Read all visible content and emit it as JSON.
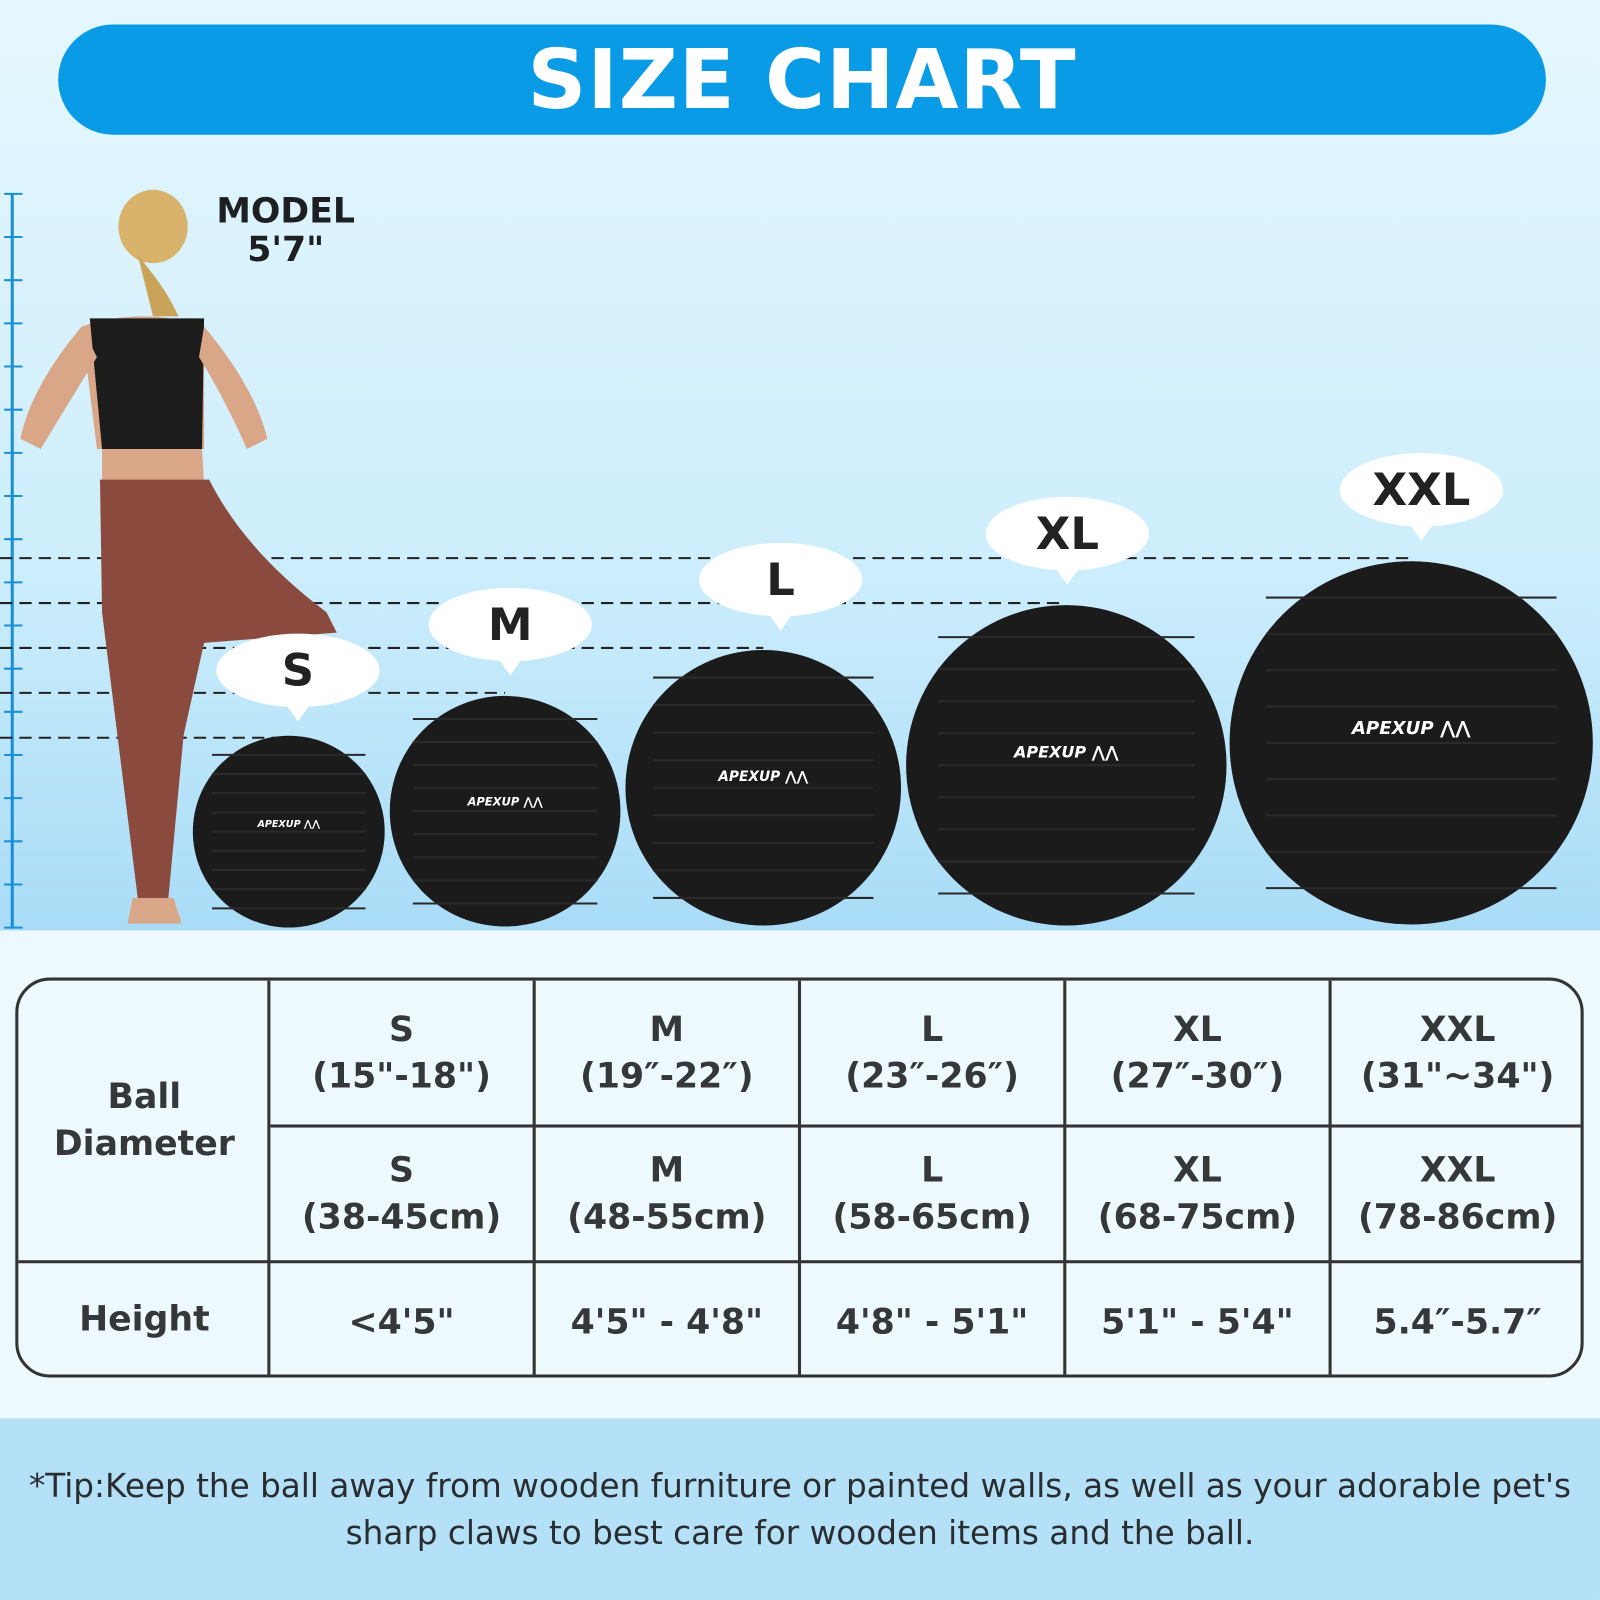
{
  "header": {
    "title": "SIZE CHART",
    "color": "#0a9be6"
  },
  "model": {
    "label": "MODEL",
    "height": "5'7\""
  },
  "sizes": [
    {
      "label": "S",
      "brand": "APEXUP"
    },
    {
      "label": "M",
      "brand": "APEXUP"
    },
    {
      "label": "L",
      "brand": "APEXUP"
    },
    {
      "label": "XL",
      "brand": "APEXUP"
    },
    {
      "label": "XXL",
      "brand": "APEXUP"
    }
  ],
  "table": {
    "row_headers": {
      "diameter": "Ball Diameter",
      "height": "Height"
    },
    "inches": [
      {
        "size": "S",
        "range": "(15\"-18\")"
      },
      {
        "size": "M",
        "range": "(19″-22″)"
      },
      {
        "size": "L",
        "range": "(23″-26″)"
      },
      {
        "size": "XL",
        "range": "(27″-30″)"
      },
      {
        "size": "XXL",
        "range": "(31\"~34\")"
      }
    ],
    "cm": [
      {
        "size": "S",
        "range": "(38-45cm)"
      },
      {
        "size": "M",
        "range": "(48-55cm)"
      },
      {
        "size": "L",
        "range": "(58-65cm)"
      },
      {
        "size": "XL",
        "range": "(68-75cm)"
      },
      {
        "size": "XXL",
        "range": "(78-86cm)"
      }
    ],
    "heights": [
      "<4'5\"",
      "4'5\" - 4'8\"",
      "4'8\" - 5'1\"",
      "5'1\" - 5'4\"",
      "5.4″-5.7″"
    ]
  },
  "tip": "*Tip:Keep the ball away from wooden furniture or painted walls, as well as your adorable pet's sharp claws to best care for wooden items and the ball."
}
